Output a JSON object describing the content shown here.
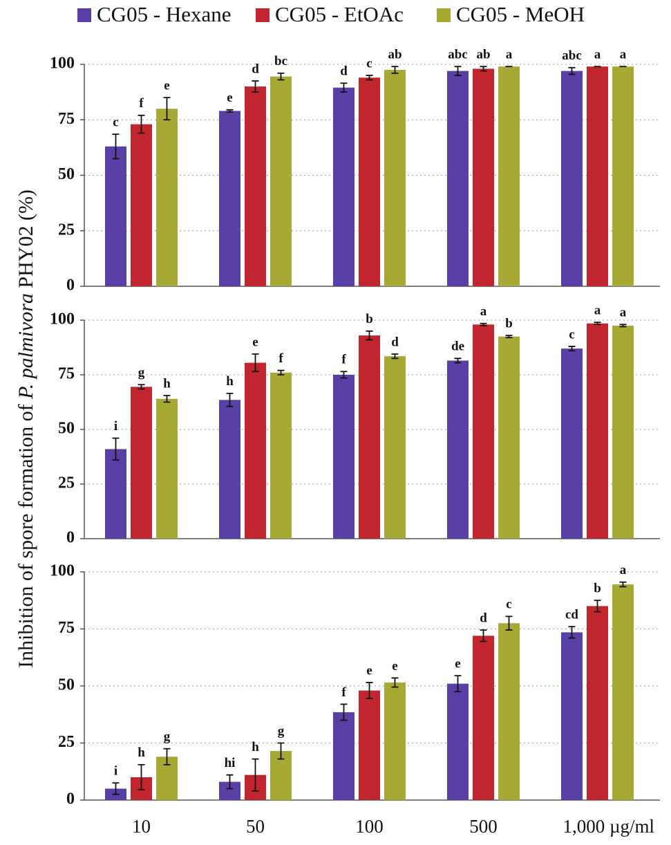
{
  "chart_data": {
    "type": "bar",
    "y_label_parts": [
      "Inhibition of spore formation of ",
      "P. palmivora",
      " PHY02 (%)"
    ],
    "categories": [
      "10",
      "50",
      "100",
      "500",
      "1,000 µg/ml"
    ],
    "series": [
      {
        "name": "CG05 - Hexane",
        "color": "#5a3fa6"
      },
      {
        "name": "CG05 - EtOAc",
        "color": "#c1252d"
      },
      {
        "name": "CG05 - MeOH",
        "color": "#a7a935"
      }
    ],
    "ylim": [
      0,
      100
    ],
    "yticks": [
      0,
      25,
      50,
      75,
      100
    ],
    "grid": true,
    "panels": [
      {
        "series": [
          {
            "values": [
              63,
              79,
              89.5,
              97,
              97
            ],
            "errors": [
              5.5,
              0.5,
              2,
              2,
              1.5
            ],
            "letters": [
              "c",
              "e",
              "d",
              "abc",
              "abc"
            ]
          },
          {
            "values": [
              73,
              90,
              94,
              98,
              99
            ],
            "errors": [
              4,
              2.5,
              1,
              1,
              0
            ],
            "letters": [
              "f",
              "d",
              "c",
              "ab",
              "a"
            ]
          },
          {
            "values": [
              80,
              94.5,
              97.5,
              99,
              99
            ],
            "errors": [
              5,
              1.5,
              1.5,
              0,
              0
            ],
            "letters": [
              "e",
              "bc",
              "ab",
              "a",
              "a"
            ]
          }
        ]
      },
      {
        "series": [
          {
            "values": [
              41,
              63.5,
              75,
              81.5,
              87
            ],
            "errors": [
              5,
              3,
              1.5,
              1,
              1
            ],
            "letters": [
              "i",
              "h",
              "f",
              "de",
              "c"
            ]
          },
          {
            "values": [
              69.5,
              80.5,
              93,
              98,
              98.5
            ],
            "errors": [
              1,
              4,
              2,
              0.5,
              0.5
            ],
            "letters": [
              "g",
              "e",
              "b",
              "a",
              "a"
            ]
          },
          {
            "values": [
              64,
              76,
              83.5,
              92.5,
              97.5
            ],
            "errors": [
              1.5,
              1,
              1,
              0.5,
              0.5
            ],
            "letters": [
              "h",
              "f",
              "d",
              "b",
              "a"
            ]
          }
        ]
      },
      {
        "series": [
          {
            "values": [
              5,
              8,
              38.5,
              51,
              73.5
            ],
            "errors": [
              2.5,
              3,
              3.5,
              3.5,
              2.5
            ],
            "letters": [
              "i",
              "hi",
              "f",
              "e",
              "cd"
            ]
          },
          {
            "values": [
              10,
              11,
              48,
              72,
              85
            ],
            "errors": [
              5.5,
              7,
              3.5,
              2.5,
              2.5
            ],
            "letters": [
              "h",
              "h",
              "e",
              "d",
              "b"
            ]
          },
          {
            "values": [
              19,
              21.5,
              51.5,
              77.5,
              94.5
            ],
            "errors": [
              3.5,
              3.5,
              2,
              3,
              1
            ],
            "letters": [
              "g",
              "g",
              "e",
              "c",
              "a"
            ]
          }
        ]
      }
    ]
  }
}
